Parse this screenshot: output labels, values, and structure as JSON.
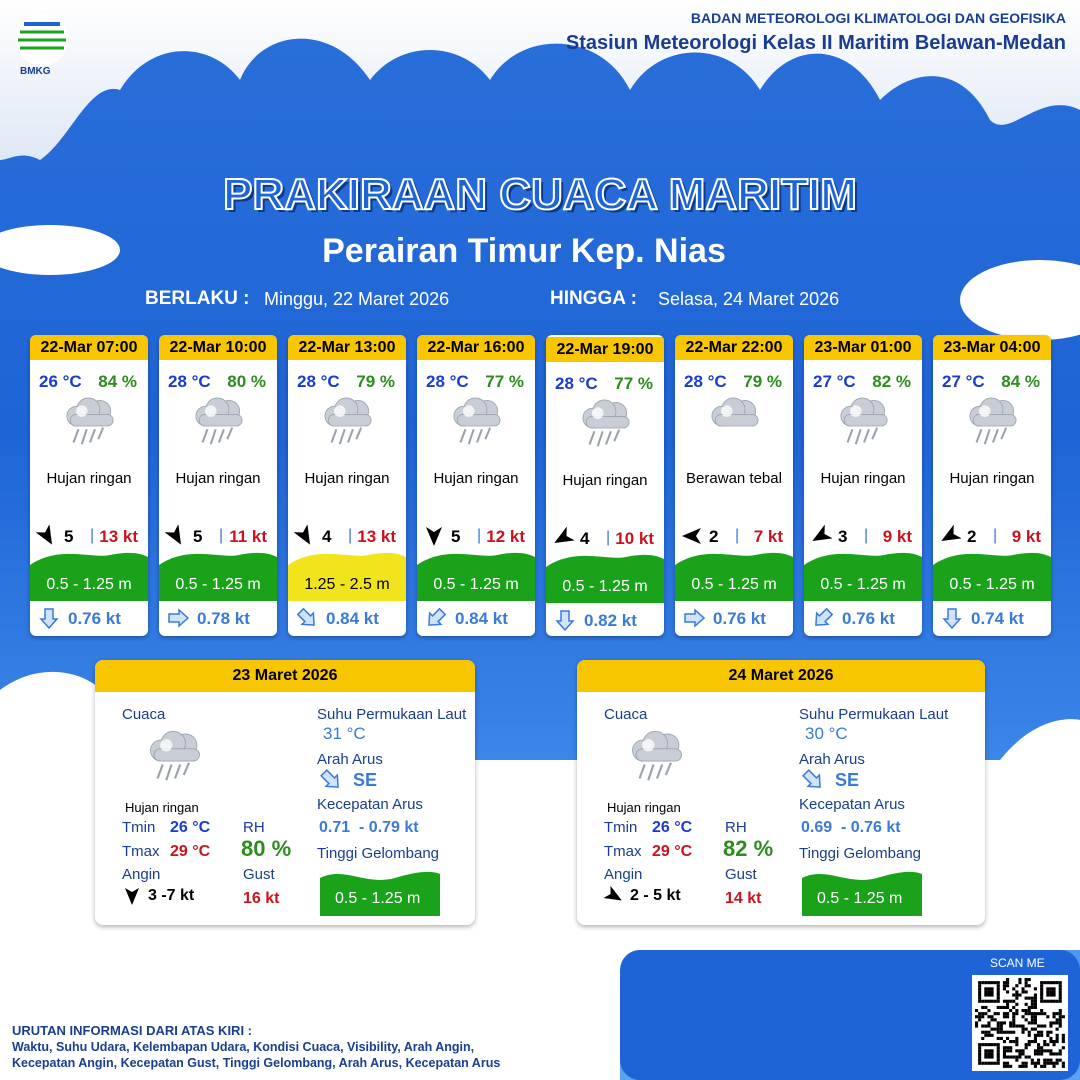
{
  "header": {
    "logo_text": "BMKG",
    "org": "BADAN METEOROLOGI KLIMATOLOGI DAN GEOFISIKA",
    "station": "Stasiun Meteorologi Kelas II Maritim Belawan-Medan"
  },
  "title": "PRAKIRAAN CUACA MARITIM",
  "subtitle": "Perairan Timur Kep. Nias",
  "validity": {
    "from_label": "BERLAKU :",
    "from": "Minggu, 22 Maret 2026",
    "to_label": "HINGGA :",
    "to": "Selasa, 24 Maret 2026"
  },
  "cards": [
    {
      "time": "22-Mar 07:00",
      "temp": "26 °C",
      "rh": "84 %",
      "weather": "Hujan ringan",
      "wind": "5",
      "gust": "13 kt",
      "wave": "0.5 - 1.25 m",
      "wave_color": "#1aa31a",
      "current": "0.76 kt"
    },
    {
      "time": "22-Mar 10:00",
      "temp": "28 °C",
      "rh": "80 %",
      "weather": "Hujan ringan",
      "wind": "5",
      "gust": "11 kt",
      "wave": "0.5 - 1.25 m",
      "wave_color": "#1aa31a",
      "current": "0.78 kt"
    },
    {
      "time": "22-Mar 13:00",
      "temp": "28 °C",
      "rh": "79 %",
      "weather": "Hujan ringan",
      "wind": "4",
      "gust": "13 kt",
      "wave": "1.25 - 2.5 m",
      "wave_color": "#f2e41c",
      "current": "0.84 kt"
    },
    {
      "time": "22-Mar 16:00",
      "temp": "28 °C",
      "rh": "77 %",
      "weather": "Hujan ringan",
      "wind": "5",
      "gust": "12 kt",
      "wave": "0.5 - 1.25 m",
      "wave_color": "#1aa31a",
      "current": "0.84 kt"
    },
    {
      "time": "22-Mar 19:00",
      "temp": "28 °C",
      "rh": "77 %",
      "weather": "Hujan ringan",
      "wind": "4",
      "gust": "10 kt",
      "wave": "0.5 - 1.25 m",
      "wave_color": "#1aa31a",
      "current": "0.82 kt"
    },
    {
      "time": "22-Mar 22:00",
      "temp": "28 °C",
      "rh": "79 %",
      "weather": "Berawan tebal",
      "wind": "2",
      "gust": "7 kt",
      "wave": "0.5 - 1.25 m",
      "wave_color": "#1aa31a",
      "current": "0.76 kt"
    },
    {
      "time": "23-Mar 01:00",
      "temp": "27 °C",
      "rh": "82 %",
      "weather": "Hujan ringan",
      "wind": "3",
      "gust": "9 kt",
      "wave": "0.5 - 1.25 m",
      "wave_color": "#1aa31a",
      "current": "0.76 kt"
    },
    {
      "time": "23-Mar 04:00",
      "temp": "27 °C",
      "rh": "84 %",
      "weather": "Hujan ringan",
      "wind": "2",
      "gust": "9 kt",
      "wave": "0.5 - 1.25 m",
      "wave_color": "#1aa31a",
      "current": "0.74 kt"
    }
  ],
  "summaries": [
    {
      "date": "23 Maret 2026",
      "weather_label": "Cuaca",
      "weather": "Hujan ringan",
      "tmin_label": "Tmin",
      "tmin": "26 °C",
      "tmax_label": "Tmax",
      "tmax": "29 °C",
      "wind_label": "Angin",
      "wind": "3 -7 kt",
      "rh_label": "RH",
      "rh": "80 %",
      "gust_label": "Gust",
      "gust": "16 kt",
      "sst_label": "Suhu Permukaan Laut",
      "sst": "31 °C",
      "current_dir_label": "Arah Arus",
      "current_dir": "SE",
      "current_speed_label": "Kecepatan Arus",
      "current_speed": "0.71  - 0.79 kt",
      "wave_label": "Tinggi Gelombang",
      "wave": "0.5 - 1.25 m"
    },
    {
      "date": "24 Maret 2026",
      "weather_label": "Cuaca",
      "weather": "Hujan ringan",
      "tmin_label": "Tmin",
      "tmin": "26 °C",
      "tmax_label": "Tmax",
      "tmax": "29 °C",
      "wind_label": "Angin",
      "wind": "2 - 5 kt",
      "rh_label": "RH",
      "rh": "82 %",
      "gust_label": "Gust",
      "gust": "14 kt",
      "sst_label": "Suhu Permukaan Laut",
      "sst": "30 °C",
      "current_dir_label": "Arah Arus",
      "current_dir": "SE",
      "current_speed_label": "Kecepatan Arus",
      "current_speed": "0.69  - 0.76 kt",
      "wave_label": "Tinggi Gelombang",
      "wave": "0.5 - 1.25 m"
    }
  ],
  "footer": {
    "scan": "SCAN ME",
    "info_title": "URUTAN INFORMASI DARI ATAS KIRI :",
    "info_lines": [
      "Waktu, Suhu Udara, Kelembapan Udara, Kondisi Cuaca, Visibility, Arah Angin,",
      "Kecepatan Angin, Kecepatan Gust, Tinggi Gelombang, Arah Arus, Kecepatan Arus"
    ]
  }
}
